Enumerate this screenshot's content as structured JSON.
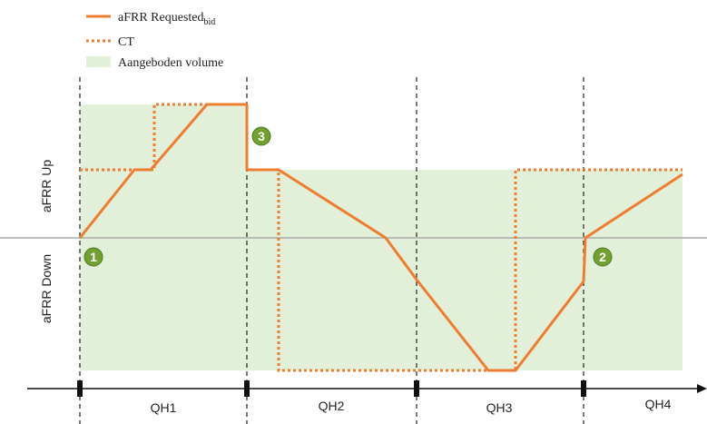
{
  "legend": [
    {
      "label": "aFRR Requested",
      "subscript": "bid"
    },
    {
      "label": "CT"
    },
    {
      "label": "Aangeboden volume"
    }
  ],
  "axis_labels": {
    "up": "aFRR Up",
    "down": "aFRR Down"
  },
  "periods": [
    "QH1",
    "QH2",
    "QH3",
    "QH4"
  ],
  "markers": [
    "1",
    "2",
    "3"
  ]
}
